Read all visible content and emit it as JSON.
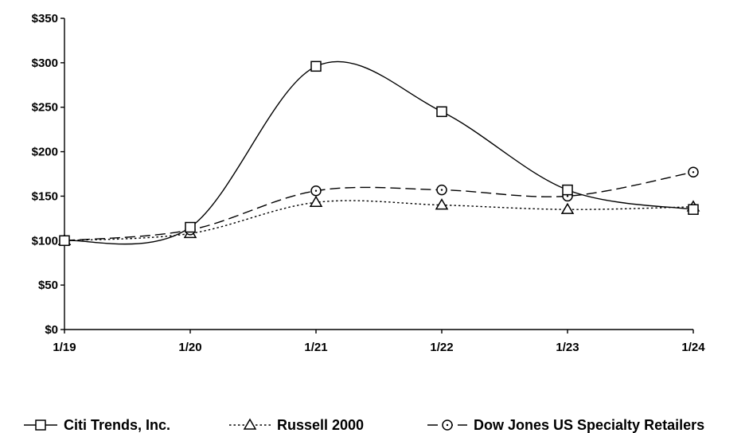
{
  "chart_data": {
    "type": "line",
    "title": "",
    "xlabel": "",
    "ylabel": "",
    "categories": [
      "1/19",
      "1/20",
      "1/21",
      "1/22",
      "1/23",
      "1/24"
    ],
    "ylim": [
      0,
      350
    ],
    "y_ticks": [
      0,
      50,
      100,
      150,
      200,
      250,
      300,
      350
    ],
    "y_tick_labels": [
      "$0",
      "$50",
      "$100",
      "$150",
      "$200",
      "$250",
      "$300",
      "$350"
    ],
    "grid": false,
    "legend_position": "bottom",
    "series": [
      {
        "name": "Citi Trends, Inc.",
        "values": [
          100,
          115,
          296,
          245,
          157,
          135
        ],
        "marker": "square",
        "line_style": "solid",
        "color": "#000000"
      },
      {
        "name": "Russell 2000",
        "values": [
          100,
          108,
          143,
          140,
          135,
          138
        ],
        "marker": "triangle",
        "line_style": "dotted",
        "color": "#000000"
      },
      {
        "name": "Dow Jones US Specialty Retailers",
        "values": [
          100,
          112,
          156,
          157,
          150,
          177
        ],
        "marker": "circle",
        "line_style": "dashed",
        "color": "#000000"
      }
    ]
  }
}
